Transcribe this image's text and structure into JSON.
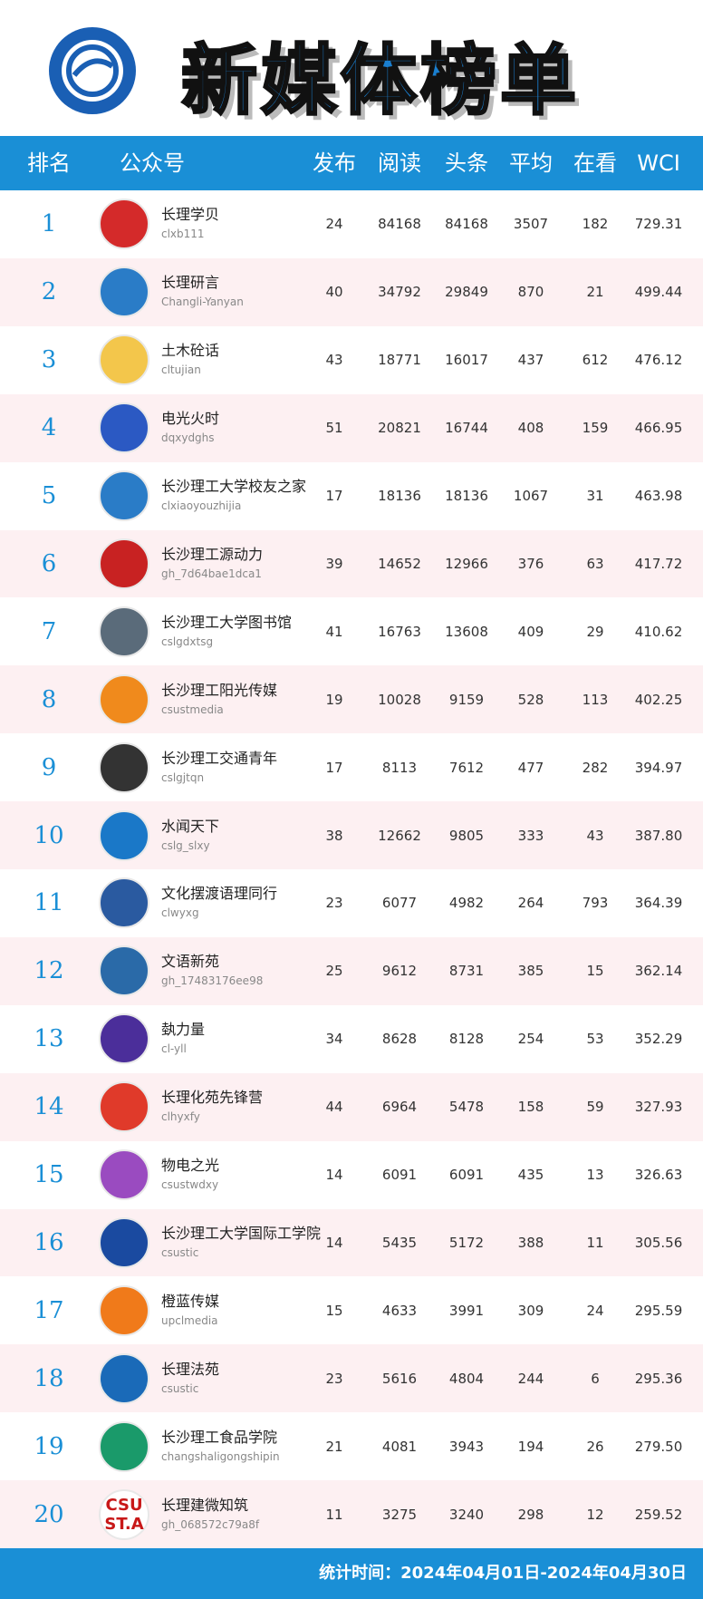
{
  "header": {
    "title": "新媒体榜单"
  },
  "table": {
    "headers": [
      "排名",
      "公众号",
      "发布",
      "阅读",
      "头条",
      "平均",
      "在看",
      "WCI"
    ],
    "rows": [
      {
        "rank": 1,
        "name": "长理学贝",
        "id": "clxb111",
        "posts": 24,
        "reads": 84168,
        "top": 84168,
        "avg": 3507,
        "watching": 182,
        "wci": "729.31"
      },
      {
        "rank": 2,
        "name": "长理研言",
        "id": "Changli-Yanyan",
        "posts": 40,
        "reads": 34792,
        "top": 29849,
        "avg": 870,
        "watching": 21,
        "wci": "499.44"
      },
      {
        "rank": 3,
        "name": "土木砼话",
        "id": "cltujian",
        "posts": 43,
        "reads": 18771,
        "top": 16017,
        "avg": 437,
        "watching": 612,
        "wci": "476.12"
      },
      {
        "rank": 4,
        "name": "电光火时",
        "id": "dqxydghs",
        "posts": 51,
        "reads": 20821,
        "top": 16744,
        "avg": 408,
        "watching": 159,
        "wci": "466.95"
      },
      {
        "rank": 5,
        "name": "长沙理工大学校友之家",
        "id": "clxiaoyouzhijia",
        "posts": 17,
        "reads": 18136,
        "top": 18136,
        "avg": 1067,
        "watching": 31,
        "wci": "463.98"
      },
      {
        "rank": 6,
        "name": "长沙理工源动力",
        "id": "gh_7d64bae1dca1",
        "posts": 39,
        "reads": 14652,
        "top": 12966,
        "avg": 376,
        "watching": 63,
        "wci": "417.72"
      },
      {
        "rank": 7,
        "name": "长沙理工大学图书馆",
        "id": "cslgdxtsg",
        "posts": 41,
        "reads": 16763,
        "top": 13608,
        "avg": 409,
        "watching": 29,
        "wci": "410.62"
      },
      {
        "rank": 8,
        "name": "长沙理工阳光传媒",
        "id": "csustmedia",
        "posts": 19,
        "reads": 10028,
        "top": 9159,
        "avg": 528,
        "watching": 113,
        "wci": "402.25"
      },
      {
        "rank": 9,
        "name": "长沙理工交通青年",
        "id": "cslgjtqn",
        "posts": 17,
        "reads": 8113,
        "top": 7612,
        "avg": 477,
        "watching": 282,
        "wci": "394.97"
      },
      {
        "rank": 10,
        "name": "水闻天下",
        "id": "cslg_slxy",
        "posts": 38,
        "reads": 12662,
        "top": 9805,
        "avg": 333,
        "watching": 43,
        "wci": "387.80"
      },
      {
        "rank": 11,
        "name": "文化摆渡语理同行",
        "id": "clwyxg",
        "posts": 23,
        "reads": 6077,
        "top": 4982,
        "avg": 264,
        "watching": 793,
        "wci": "364.39"
      },
      {
        "rank": 12,
        "name": "文语新苑",
        "id": "gh_17483176ee98",
        "posts": 25,
        "reads": 9612,
        "top": 8731,
        "avg": 385,
        "watching": 15,
        "wci": "362.14"
      },
      {
        "rank": 13,
        "name": "埶力量",
        "id": "cl-yll",
        "posts": 34,
        "reads": 8628,
        "top": 8128,
        "avg": 254,
        "watching": 53,
        "wci": "352.29"
      },
      {
        "rank": 14,
        "name": "长理化苑先锋营",
        "id": "clhyxfy",
        "posts": 44,
        "reads": 6964,
        "top": 5478,
        "avg": 158,
        "watching": 59,
        "wci": "327.93"
      },
      {
        "rank": 15,
        "name": "物电之光",
        "id": "csustwdxy",
        "posts": 14,
        "reads": 6091,
        "top": 6091,
        "avg": 435,
        "watching": 13,
        "wci": "326.63"
      },
      {
        "rank": 16,
        "name": "长沙理工大学国际工学院",
        "id": "csustic",
        "posts": 14,
        "reads": 5435,
        "top": 5172,
        "avg": 388,
        "watching": 11,
        "wci": "305.56"
      },
      {
        "rank": 17,
        "name": "橙蓝传媒",
        "id": "upclmedia",
        "posts": 15,
        "reads": 4633,
        "top": 3991,
        "avg": 309,
        "watching": 24,
        "wci": "295.59"
      },
      {
        "rank": 18,
        "name": "长理法苑",
        "id": "csustic",
        "posts": 23,
        "reads": 5616,
        "top": 4804,
        "avg": 244,
        "watching": 6,
        "wci": "295.36"
      },
      {
        "rank": 19,
        "name": "长沙理工食品学院",
        "id": "changshaligongshipin",
        "posts": 21,
        "reads": 4081,
        "top": 3943,
        "avg": 194,
        "watching": 26,
        "wci": "279.50"
      },
      {
        "rank": 20,
        "name": "长理建微知筑",
        "id": "gh_068572c79a8f",
        "posts": 11,
        "reads": 3275,
        "top": 3240,
        "avg": 298,
        "watching": 12,
        "wci": "259.52",
        "logo_text": [
          "CSU",
          "ST.A"
        ]
      }
    ]
  },
  "footer": {
    "text": "统计时间：2024年04月01日-2024年04月30日"
  }
}
